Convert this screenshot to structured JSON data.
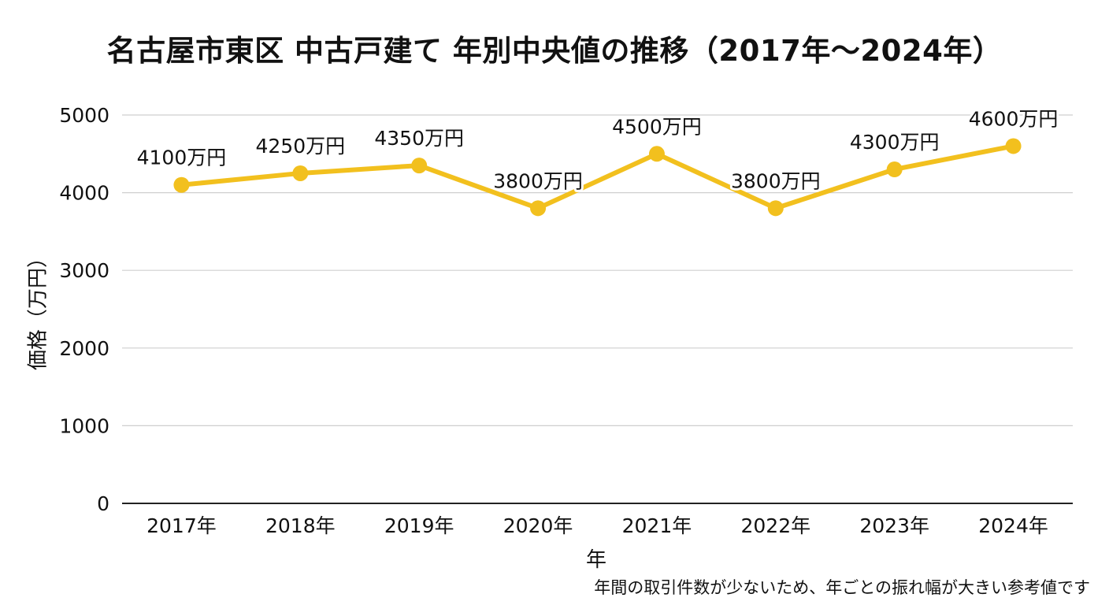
{
  "chart_data": {
    "type": "line",
    "title": "名古屋市東区 中古戸建て 年別中央値の推移（2017年〜2024年）",
    "xlabel": "年",
    "ylabel": "価格（万円）",
    "categories": [
      "2017年",
      "2018年",
      "2019年",
      "2020年",
      "2021年",
      "2022年",
      "2023年",
      "2024年"
    ],
    "series": [
      {
        "values": [
          4100,
          4250,
          4350,
          3800,
          4500,
          3800,
          4300,
          4600
        ],
        "labels": [
          "4100万円",
          "4250万円",
          "4350万円",
          "3800万円",
          "4500万円",
          "3800万円",
          "4300万円",
          "4600万円"
        ],
        "color": "#F2C01E"
      }
    ],
    "yticks": [
      "0",
      "1000",
      "2000",
      "3000",
      "4000",
      "5000"
    ],
    "ylim": [
      0,
      5000
    ],
    "grid": true,
    "legend": "none",
    "footnote": "年間の取引件数が少ないため、年ごとの振れ幅が大きい参考値です"
  }
}
